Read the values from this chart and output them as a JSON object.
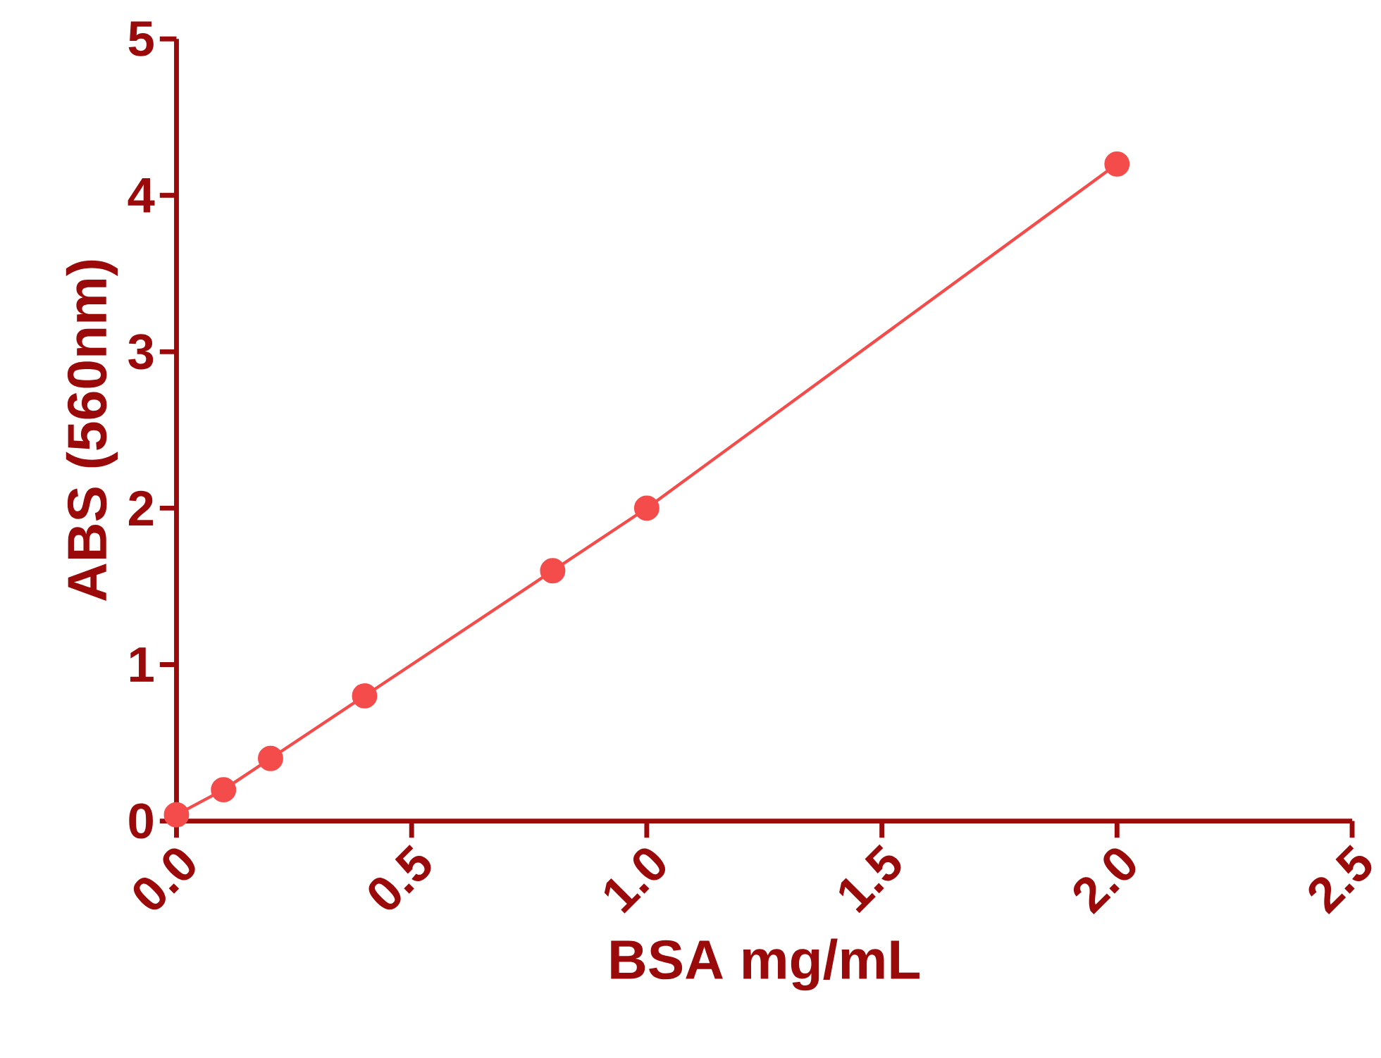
{
  "chart_data": {
    "type": "line",
    "xlabel": "BSA mg/mL",
    "ylabel": "ABS (560nm)",
    "x": [
      0,
      0.1,
      0.2,
      0.4,
      0.8,
      1.0,
      2.0
    ],
    "series": [
      {
        "color": "#f44b4b",
        "values": [
          0.04,
          0.2,
          0.4,
          0.8,
          1.6,
          2.0,
          4.2
        ]
      }
    ],
    "xlim": [
      0,
      2.5
    ],
    "xticks": [
      {
        "value": 0,
        "label": "0.0"
      },
      {
        "value": 0.5,
        "label": "0.5"
      },
      {
        "value": 1,
        "label": "1.0"
      },
      {
        "value": 1.5,
        "label": "1.5"
      },
      {
        "value": 2,
        "label": "2.0"
      },
      {
        "value": 2.5,
        "label": "2.5"
      }
    ],
    "ylim": [
      0,
      5
    ],
    "yticks": [
      0,
      1,
      2,
      3,
      4,
      5
    ],
    "grid": false,
    "marker": "circle",
    "line_style": "solid"
  }
}
